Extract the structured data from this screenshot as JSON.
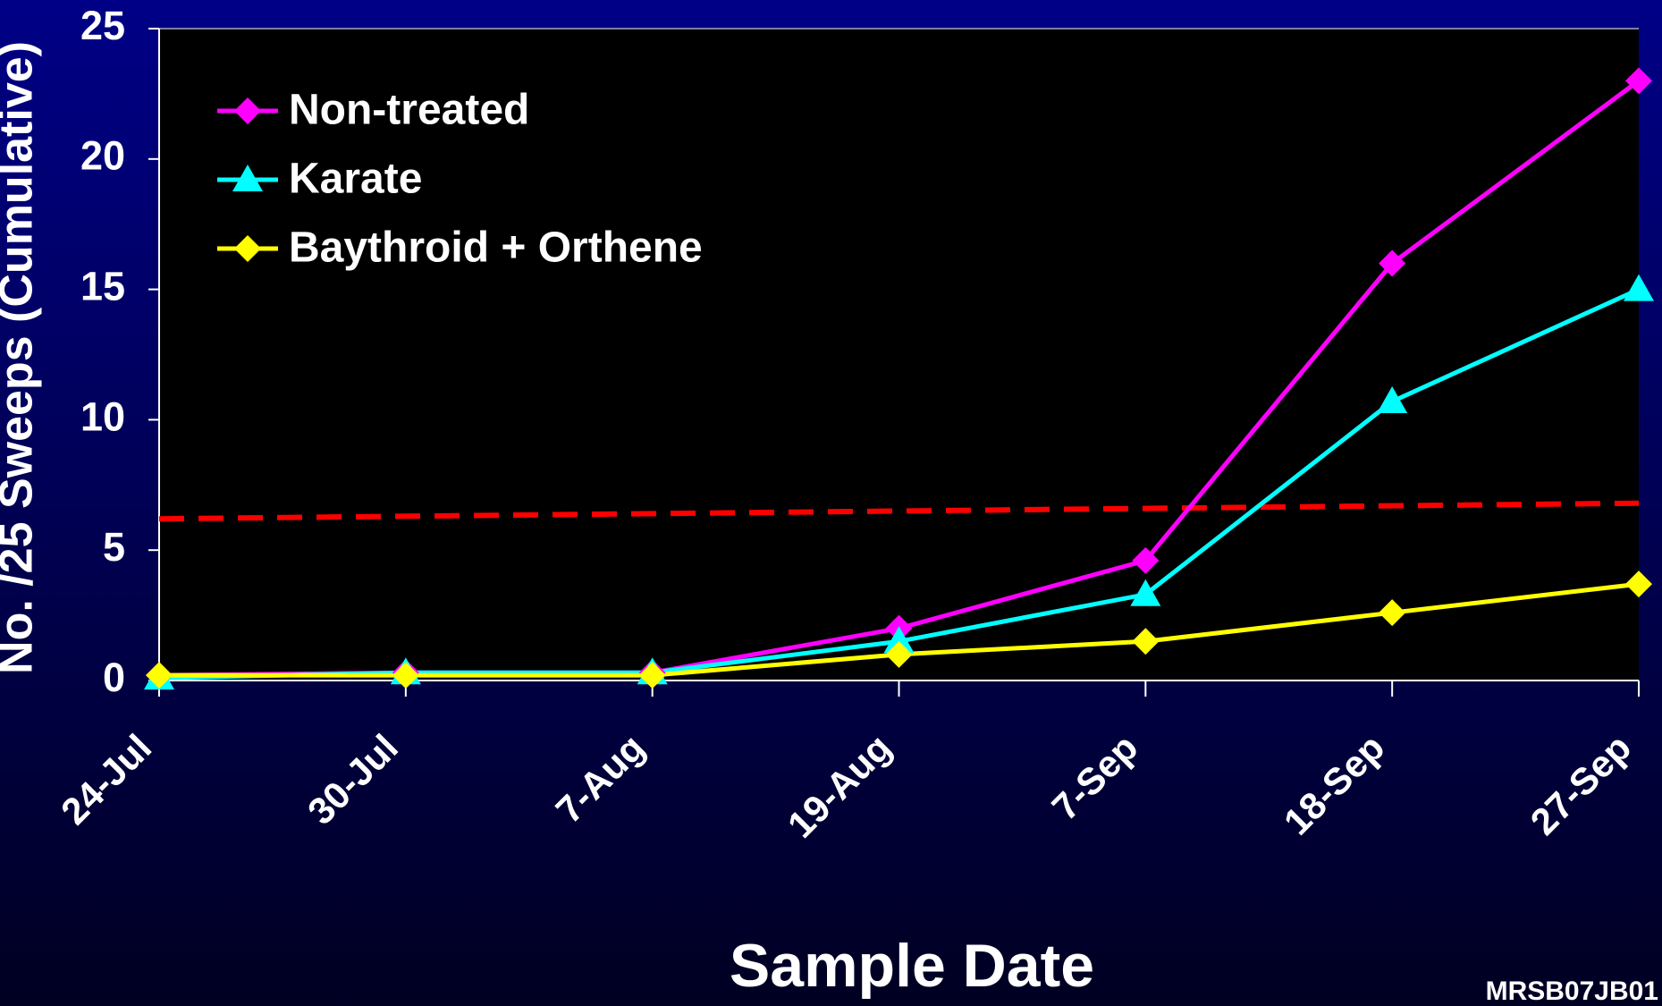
{
  "chart_data": {
    "type": "line",
    "x_label": "Sample Date",
    "y_label": "No. /25 Sweeps  (Cumulative)",
    "footer": "MRSB07JB01",
    "categories": [
      "24-Jul",
      "30-Jul",
      "7-Aug",
      "19-Aug",
      "7-Sep",
      "18-Sep",
      "27-Sep"
    ],
    "series": [
      {
        "name": "Non-treated",
        "color": "#ff00ff",
        "marker": "diamond",
        "values": [
          0.2,
          0.3,
          0.3,
          2.0,
          4.6,
          16.0,
          23.0
        ]
      },
      {
        "name": "Karate",
        "color": "#00ffff",
        "marker": "triangle",
        "values": [
          0.1,
          0.3,
          0.3,
          1.5,
          3.3,
          10.7,
          15.0
        ]
      },
      {
        "name": "Baythroid + Orthene",
        "color": "#ffff00",
        "marker": "diamond",
        "values": [
          0.2,
          0.2,
          0.2,
          1.0,
          1.5,
          2.6,
          3.7
        ]
      }
    ],
    "threshold": {
      "color": "#ff0000",
      "values": [
        6.2,
        6.8
      ]
    },
    "ylim": [
      0,
      25
    ],
    "yticks": [
      0,
      5,
      10,
      15,
      20,
      25
    ],
    "legend": "upper left"
  }
}
